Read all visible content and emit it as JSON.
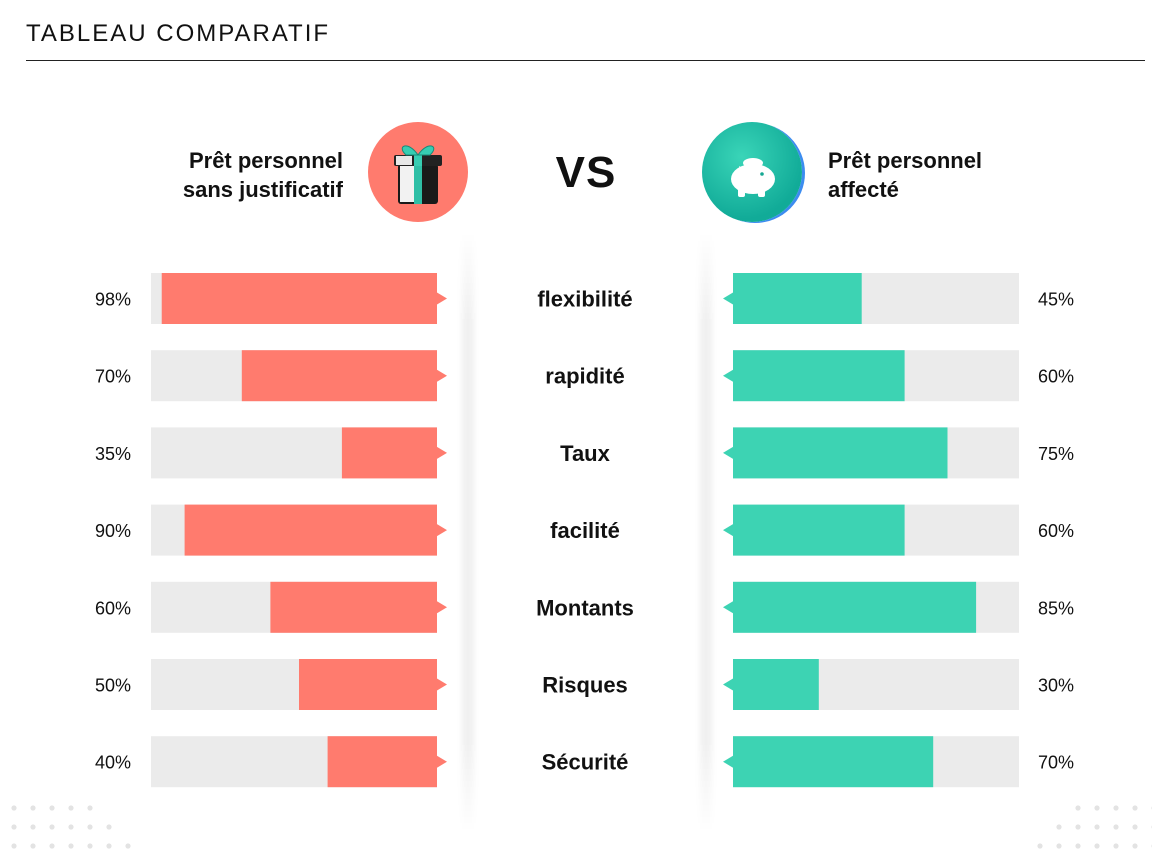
{
  "header": {
    "title": "TABLEAU COMPARATIF"
  },
  "left_card": {
    "title_line1": "Prêt personnel",
    "title_line2": "sans justificatif",
    "icon": "gift-icon"
  },
  "right_card": {
    "title_line1": "Prêt personnel",
    "title_line2": "affecté",
    "icon": "piggy-bank-icon"
  },
  "vs_label": "VS",
  "colors": {
    "left_bar": "#ff7b6e",
    "right_bar": "#3dd3b3",
    "track": "#ebebeb",
    "gift_circle": "#ff7b6e",
    "piggy_circle": "#20c0a8"
  },
  "chart_data": {
    "type": "bar",
    "categories": [
      "flexibilité",
      "rapidité",
      "Taux",
      "facilité",
      "Montants",
      "Risques",
      "Sécurité"
    ],
    "series": [
      {
        "name": "Prêt personnel sans justificatif",
        "values": [
          98,
          70,
          35,
          90,
          60,
          50,
          40
        ],
        "labels": [
          "98%",
          "70%",
          "35%",
          "90%",
          "60%",
          "50%",
          "40%"
        ]
      },
      {
        "name": "Prêt personnel affecté",
        "values": [
          45,
          60,
          75,
          60,
          85,
          30,
          70
        ],
        "labels": [
          "45%",
          "60%",
          "75%",
          "60%",
          "85%",
          "30%",
          "70%"
        ]
      }
    ],
    "ylim": [
      0,
      100
    ]
  }
}
